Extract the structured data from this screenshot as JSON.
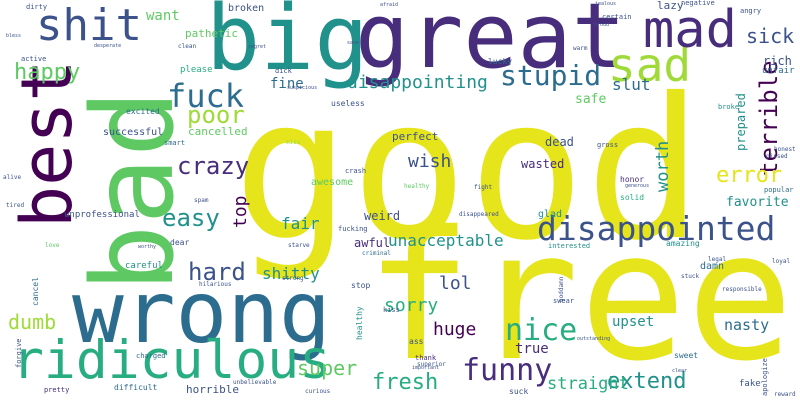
{
  "palette": {
    "yellow": "#e6e51b",
    "green": "#5ec962",
    "teal": "#21918c",
    "blue": "#2c6c8e",
    "indigo": "#3b528b",
    "purple": "#472d7b",
    "dark": "#440154",
    "lightgreen": "#a0da39",
    "aqua": "#27ad81"
  },
  "words": {
    "good": "good",
    "free": "free",
    "bad": "bad",
    "great": "great",
    "big": "big",
    "best": "best",
    "wrong": "wrong",
    "shit": "shit",
    "mad": "mad",
    "sad": "sad",
    "ridiculous": "ridiculous",
    "disappointed": "disappointed",
    "stupid": "stupid",
    "fuck": "fuck",
    "funny": "funny",
    "nice": "nice",
    "terrible": "terrible",
    "error": "error",
    "extend": "extend",
    "crazy": "crazy",
    "poor": "poor",
    "hard": "hard",
    "easy": "easy",
    "happy": "happy",
    "disappointing": "disappointing",
    "sick": "sick",
    "fresh": "fresh",
    "super": "super",
    "want": "want",
    "fine": "fine",
    "slut": "slut",
    "worth": "worth",
    "wish": "wish",
    "dumb": "dumb",
    "sorry": "sorry",
    "lol": "lol",
    "huge": "huge",
    "straight": "straight",
    "nasty": "nasty",
    "upset": "upset",
    "favorite": "favorite",
    "safe": "safe",
    "top": "top",
    "fair": "fair",
    "shitty": "shitty",
    "unacceptable": "unacceptable",
    "awful": "awful",
    "weird": "weird",
    "true": "true",
    "prepared": "prepared",
    "rich": "rich",
    "pathetic": "pathetic",
    "cancelled": "cancelled",
    "successful": "successful",
    "awesome": "awesome",
    "dead": "dead",
    "perfect": "perfect",
    "lazy": "lazy",
    "broken": "broken",
    "glad": "glad",
    "damn": "damn",
    "wasted": "wasted",
    "horrible": "horrible",
    "fake": "fake",
    "unprofessional": "unprofessional",
    "excited": "excited",
    "please": "please",
    "useless": "useless",
    "smart": "smart",
    "cancel": "cancel",
    "careful": "careful",
    "stop": "stop",
    "difficult": "difficult",
    "dear": "dear",
    "lucky": "lucky",
    "active": "active",
    "dirty": "dirty",
    "angry": "angry",
    "negative": "negative",
    "certain": "certain",
    "unfair": "unfair",
    "healthy_v": "healthy",
    "sweet": "sweet",
    "solid": "solid",
    "honor": "honor",
    "dick": "dick",
    "interested": "interested",
    "amazing": "amazing",
    "kiss": "kiss",
    "lame": "lame",
    "ass": "ass",
    "pretty": "pretty",
    "thank": "thank",
    "apologize": "apologize",
    "forgive": "forgive",
    "fucking": "fucking",
    "gross": "gross",
    "popular": "popular",
    "broke": "broke",
    "disappeared": "disappeared",
    "suck": "suck",
    "charged": "charged",
    "curious": "curious",
    "superior": "superior",
    "swear": "swear",
    "unbelievable": "unbelievable",
    "crash": "crash",
    "regret": "regret",
    "save": "save",
    "afraid": "afraid",
    "jealous": "jealous",
    "fight": "fight",
    "spam": "spam",
    "stuck": "stuck",
    "strong": "strong",
    "hilarious": "hilarious",
    "legal": "legal",
    "important": "important",
    "clean": "clean",
    "honest": "honest",
    "pissed": "pissed",
    "tired": "tired",
    "alive": "alive",
    "miss": "miss",
    "warm": "warm",
    "love": "love",
    "worthy": "worthy",
    "reward": "reward",
    "healthy": "healthy",
    "criminal": "criminal",
    "responsible": "responsible",
    "outstanding": "outstanding",
    "loyal": "loyal",
    "goddamn": "goddamn",
    "starve": "starve",
    "clear": "clear",
    "generous": "generous",
    "desperate": "desperate",
    "suspicious": "suspicious",
    "proud": "proud",
    "bless": "bless"
  }
}
